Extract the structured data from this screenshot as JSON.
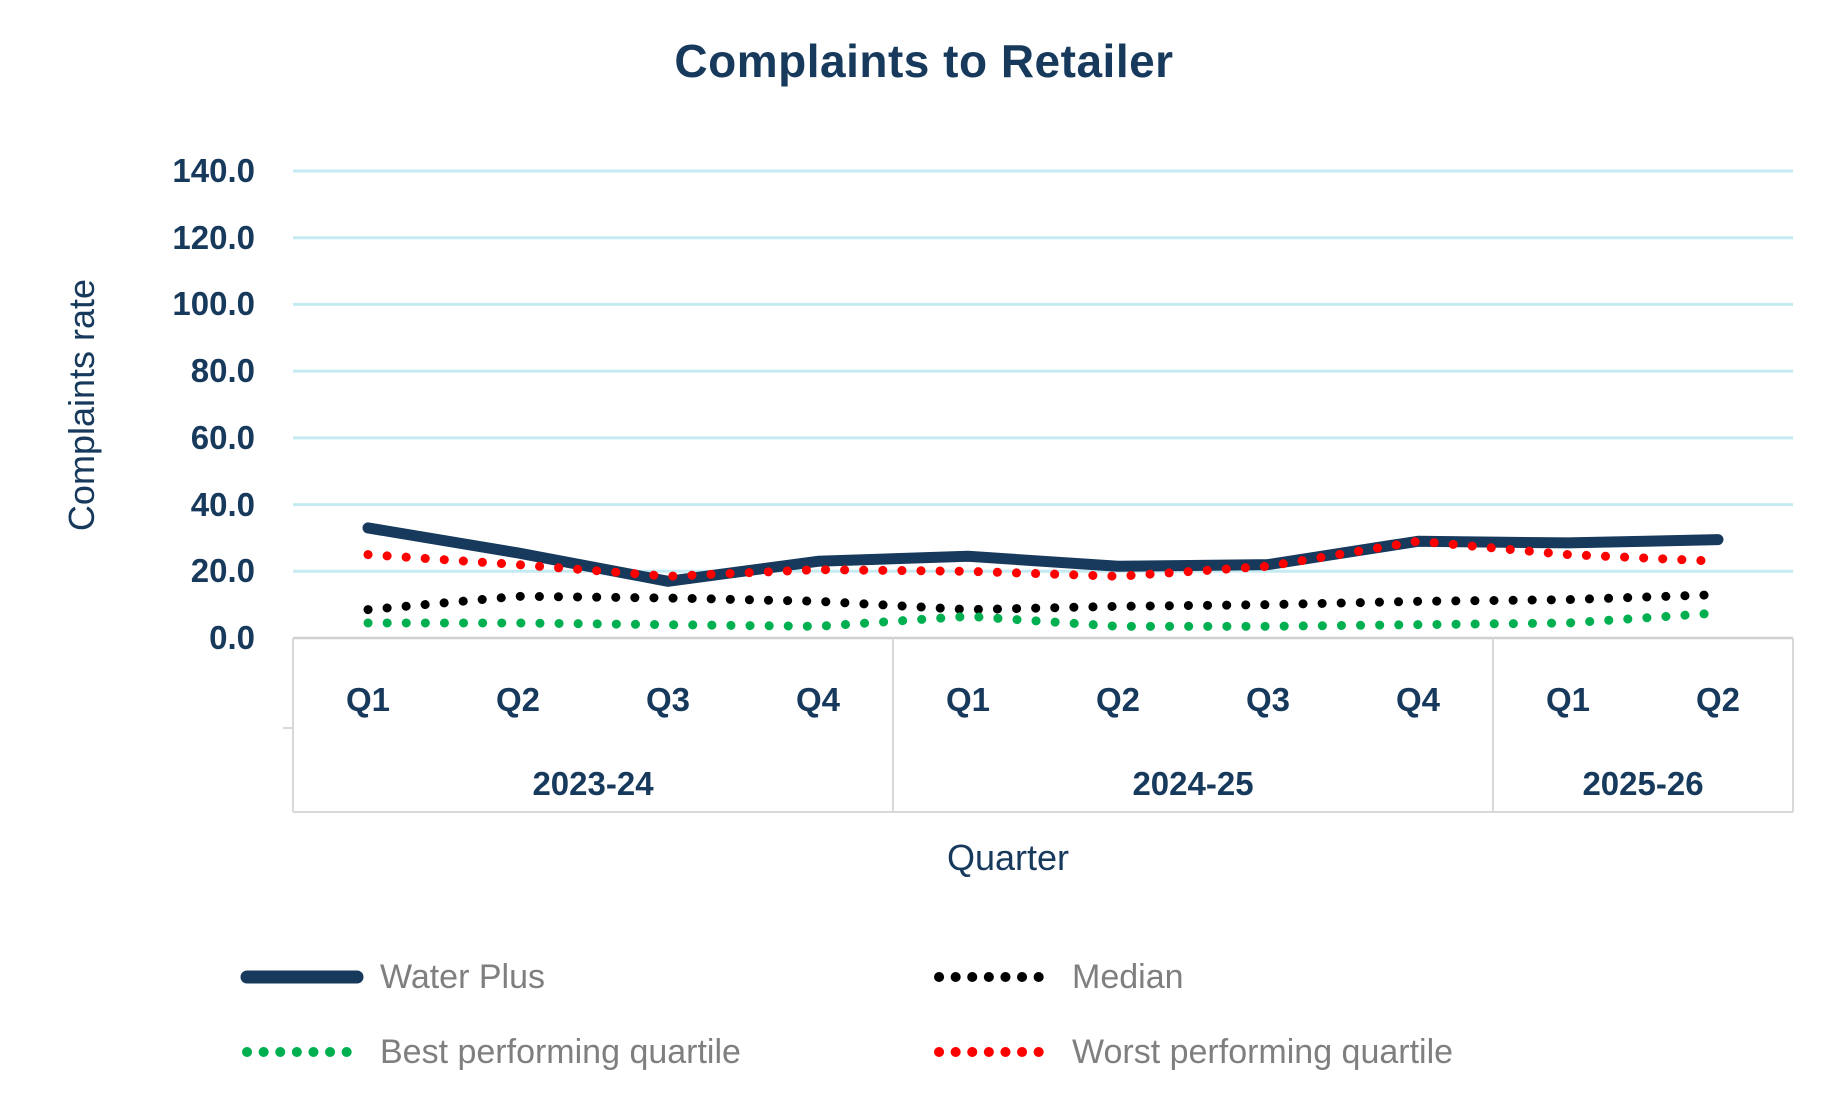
{
  "chart_data": {
    "type": "line",
    "title": "Complaints to Retailer",
    "xlabel": "Quarter",
    "ylabel": "Complaints rate",
    "ylim": [
      0,
      140
    ],
    "y_ticks": [
      140,
      120,
      100,
      80,
      60,
      40,
      20,
      0
    ],
    "y_tick_labels": [
      "140.0",
      "120.0",
      "100.0",
      "80.0",
      "60.0",
      "40.0",
      "20.0",
      "0.0"
    ],
    "grid": "horizontal",
    "legend_position": "bottom",
    "x_groups": [
      {
        "label": "2023-24",
        "quarters": [
          "Q1",
          "Q2",
          "Q3",
          "Q4"
        ]
      },
      {
        "label": "2024-25",
        "quarters": [
          "Q1",
          "Q2",
          "Q3",
          "Q4"
        ]
      },
      {
        "label": "2025-26",
        "quarters": [
          "Q1",
          "Q2"
        ]
      }
    ],
    "series": [
      {
        "name": "Water Plus",
        "style": "solid",
        "color": "#16395C",
        "values": [
          33,
          25.5,
          17,
          23,
          24.5,
          21.5,
          22,
          29,
          28.5,
          29.5
        ]
      },
      {
        "name": "Median",
        "style": "dotted",
        "color": "#000000",
        "values": [
          8.5,
          12.5,
          12,
          11,
          8.5,
          9.5,
          10,
          11,
          11.5,
          13
        ]
      },
      {
        "name": "Best performing quartile",
        "style": "dotted",
        "color": "#00B050",
        "values": [
          4.5,
          4.5,
          4,
          3.5,
          6.5,
          3.5,
          3.5,
          4,
          4.5,
          7.5
        ]
      },
      {
        "name": "Worst performing quartile",
        "style": "dotted",
        "color": "#FF0000",
        "values": [
          25,
          22,
          18.5,
          20.5,
          20,
          18.5,
          21.5,
          29,
          25,
          23
        ]
      }
    ]
  },
  "colors": {
    "accent_navy": "#16395C",
    "gridline": "#C5EBF2",
    "axis_border": "#D9D9D9",
    "axis_border_top": "#CFCFCF",
    "legend_text": "#7F7F7F"
  }
}
